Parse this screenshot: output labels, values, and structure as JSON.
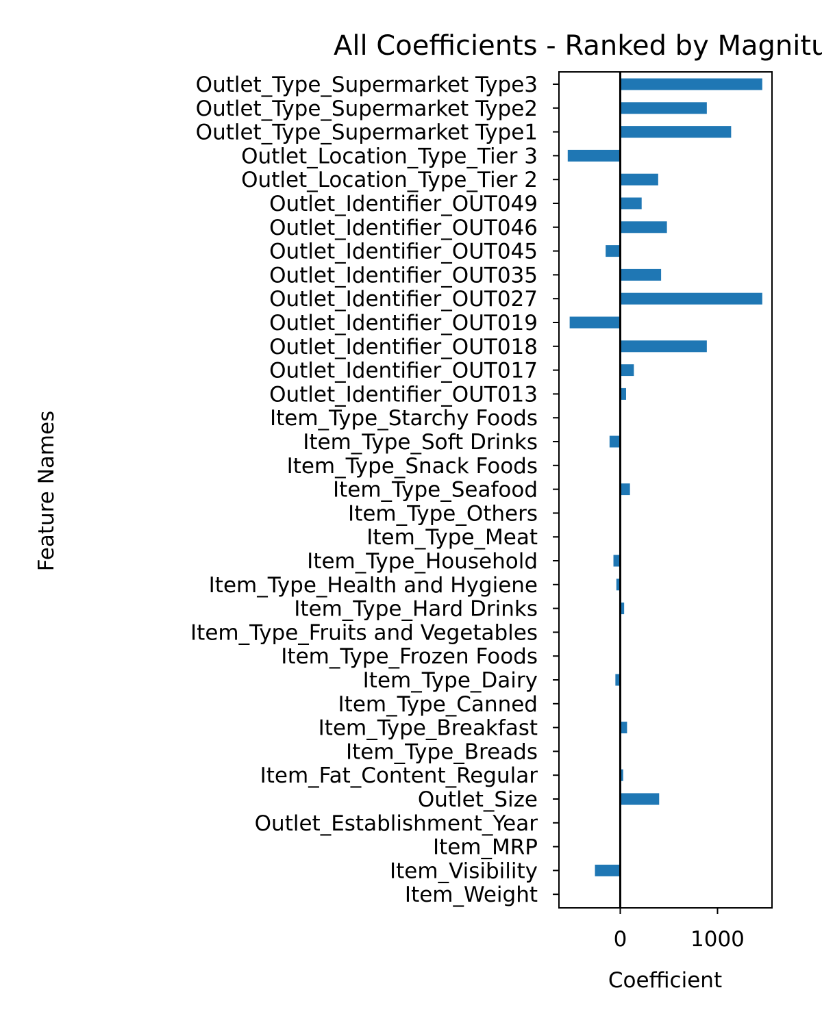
{
  "chart_data": {
    "type": "bar",
    "orientation": "horizontal",
    "title": "All Coefficients - Ranked by Magnitude",
    "xlabel": "Coefficient",
    "ylabel": "Feature Names",
    "xlim": [
      -630,
      1560
    ],
    "xticks": [
      0,
      1000
    ],
    "xtick_labels": [
      "0",
      "1000"
    ],
    "grid": false,
    "zero_line": true,
    "bar_color": "#1f77b4",
    "categories": [
      "Outlet_Type_Supermarket Type3",
      "Outlet_Type_Supermarket Type2",
      "Outlet_Type_Supermarket Type1",
      "Outlet_Location_Type_Tier 3",
      "Outlet_Location_Type_Tier 2",
      "Outlet_Identifier_OUT049",
      "Outlet_Identifier_OUT046",
      "Outlet_Identifier_OUT045",
      "Outlet_Identifier_OUT035",
      "Outlet_Identifier_OUT027",
      "Outlet_Identifier_OUT019",
      "Outlet_Identifier_OUT018",
      "Outlet_Identifier_OUT017",
      "Outlet_Identifier_OUT013",
      "Item_Type_Starchy Foods",
      "Item_Type_Soft Drinks",
      "Item_Type_Snack Foods",
      "Item_Type_Seafood",
      "Item_Type_Others",
      "Item_Type_Meat",
      "Item_Type_Household",
      "Item_Type_Health and Hygiene",
      "Item_Type_Hard Drinks",
      "Item_Type_Fruits and Vegetables",
      "Item_Type_Frozen Foods",
      "Item_Type_Dairy",
      "Item_Type_Canned",
      "Item_Type_Breakfast",
      "Item_Type_Breads",
      "Item_Fat_Content_Regular",
      "Outlet_Size",
      "Outlet_Establishment_Year",
      "Item_MRP",
      "Item_Visibility",
      "Item_Weight"
    ],
    "values": [
      1460,
      890,
      1140,
      -540,
      390,
      220,
      480,
      -150,
      420,
      1460,
      -520,
      890,
      140,
      60,
      0,
      -110,
      0,
      100,
      0,
      0,
      -70,
      -40,
      40,
      0,
      0,
      -50,
      0,
      70,
      0,
      30,
      400,
      0,
      0,
      -260,
      0
    ]
  }
}
